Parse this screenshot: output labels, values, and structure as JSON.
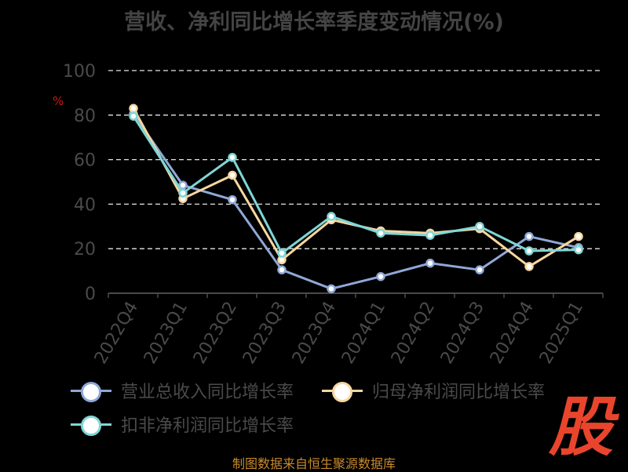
{
  "title": "营收、净利同比增长率季度变动情况(%)",
  "unit": "%",
  "source": "制图数据来自恒生聚源数据库",
  "logo_text": "股",
  "colors": {
    "background": "#000000",
    "grid": "#e6e6e6",
    "axis_text": "#4a4a4a"
  },
  "chart_data": {
    "type": "line",
    "title": "营收、净利同比增长率季度变动情况(%)",
    "xlabel": "",
    "ylabel": "%",
    "ylim": [
      0,
      100
    ],
    "yticks": [
      0,
      20,
      40,
      60,
      80,
      100
    ],
    "grid": true,
    "legend_position": "bottom",
    "categories": [
      "2022Q4",
      "2023Q1",
      "2023Q2",
      "2023Q3",
      "2023Q4",
      "2024Q1",
      "2024Q2",
      "2024Q3",
      "2024Q4",
      "2025Q1"
    ],
    "series": [
      {
        "name": "营业总收入同比增长率",
        "color": "#8fa8d8",
        "values": [
          80.5,
          48.5,
          42,
          10.5,
          2,
          7.5,
          13.5,
          10.5,
          25.5,
          20.5
        ]
      },
      {
        "name": "归母净利润同比增长率",
        "color": "#f7d7a0",
        "values": [
          83,
          42.5,
          53,
          15,
          33,
          28,
          27,
          29,
          12,
          25.5
        ]
      },
      {
        "name": "扣非净利润同比增长率",
        "color": "#7fd6d6",
        "values": [
          79.5,
          45,
          61,
          18,
          34.5,
          27,
          26,
          30,
          19,
          19.5
        ]
      }
    ]
  }
}
